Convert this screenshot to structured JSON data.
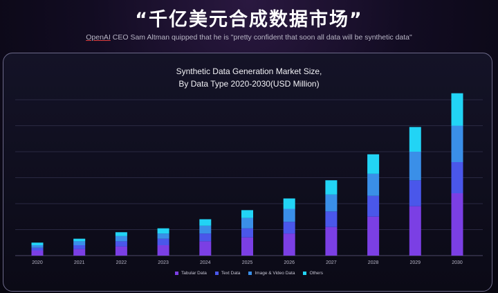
{
  "header": {
    "headline": "“千亿美元合成数据市场”",
    "quote_brand": "OpenAI",
    "quote_rest": " CEO Sam Altman quipped that he is \"pretty confident that soon all data will be synthetic data\""
  },
  "chart_data": {
    "type": "bar",
    "stacked": true,
    "title_line1": "Synthetic Data Generation Market Size,",
    "title_line2": "By Data Type 2020-2030(USD Million)",
    "categories": [
      "2020",
      "2021",
      "2022",
      "2023",
      "2024",
      "2025",
      "2026",
      "2027",
      "2028",
      "2029",
      "2030"
    ],
    "series": [
      {
        "name": "Tabular Data",
        "color": "#7b3fe4",
        "values": [
          4,
          5,
          7,
          8,
          11,
          14,
          17,
          22,
          30,
          38,
          48
        ]
      },
      {
        "name": "Text Data",
        "color": "#4a57ea",
        "values": [
          2,
          3,
          4,
          5,
          6,
          7,
          9,
          12,
          16,
          20,
          24
        ]
      },
      {
        "name": "Image & Video Data",
        "color": "#3a8fe8",
        "values": [
          2,
          3,
          4,
          4,
          6,
          8,
          10,
          13,
          17,
          22,
          28
        ]
      },
      {
        "name": "Others",
        "color": "#22d4f5",
        "values": [
          2,
          2,
          3,
          4,
          5,
          6,
          8,
          11,
          15,
          19,
          25
        ]
      }
    ],
    "ylim": [
      0,
      120
    ],
    "grid": true,
    "legend_position": "bottom-center"
  }
}
